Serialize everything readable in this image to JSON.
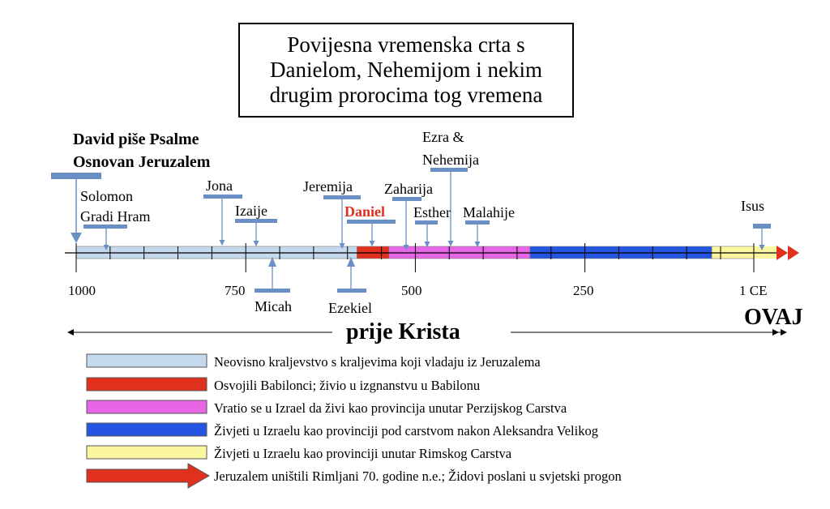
{
  "title": {
    "lines": [
      "Povijesna vremenska crta s",
      "Danielom, Nehemijom i nekim",
      "drugim prorocima tog vremena"
    ]
  },
  "header_events": [
    "David piše Psalme",
    "Osnovan Jeruzalem"
  ],
  "timeline": {
    "start_year": 1000,
    "end_year": 1,
    "tick_labels": [
      "1000",
      "750",
      "500",
      "250",
      "1 CE"
    ]
  },
  "periods": [
    {
      "name": "kingdom",
      "from": 1000,
      "to": 586,
      "color": "#c5d9ec"
    },
    {
      "name": "babylon",
      "from": 586,
      "to": 539,
      "color": "#e0301e"
    },
    {
      "name": "persia",
      "from": 539,
      "to": 331,
      "color": "#e766e6"
    },
    {
      "name": "greece",
      "from": 331,
      "to": 63,
      "color": "#2455e2"
    },
    {
      "name": "rome",
      "from": 63,
      "to": 1,
      "color": "#fbf6a0"
    }
  ],
  "events": {
    "solomon": [
      "Solomon",
      "Gradi Hram"
    ],
    "jona": "Jona",
    "izaije": "Izaije",
    "jeremija": "Jeremija",
    "daniel": "Daniel",
    "zaharija": "Zaharija",
    "ezra_nehemija": [
      "Ezra &",
      "Nehemija"
    ],
    "esther": "Esther",
    "malahije": "Malahije",
    "isus": "Isus",
    "micah": "Micah",
    "ezekiel": "Ezekiel"
  },
  "era": {
    "before": "prije Krista",
    "after": "OVAJ"
  },
  "colors": {
    "marker": "#6a8fc4",
    "daniel": "#e0301e",
    "arrow": "#e0301e"
  },
  "legend": [
    {
      "label": "Neovisno kraljevstvo s kraljevima koji vladaju iz Jeruzalema",
      "color": "#c5d9ec"
    },
    {
      "label": "Osvojili Babilonci; živio u izgnanstvu u Babilonu",
      "color": "#e0301e"
    },
    {
      "label": "Vratio se u Izrael da živi kao provincija unutar Perzijskog Carstva",
      "color": "#e766e6"
    },
    {
      "label": "Živjeti u Izraelu kao provinciji pod carstvom nakon Aleksandra Velikog",
      "color": "#2455e2"
    },
    {
      "label": "Živjeti u Izraelu kao provinciji unutar Rimskog Carstva",
      "color": "#fbf6a0"
    },
    {
      "label": "Jeruzalem uništili Rimljani 70. godine n.e.; Židovi poslani u svjetski progon",
      "color": "#e0301e"
    }
  ]
}
